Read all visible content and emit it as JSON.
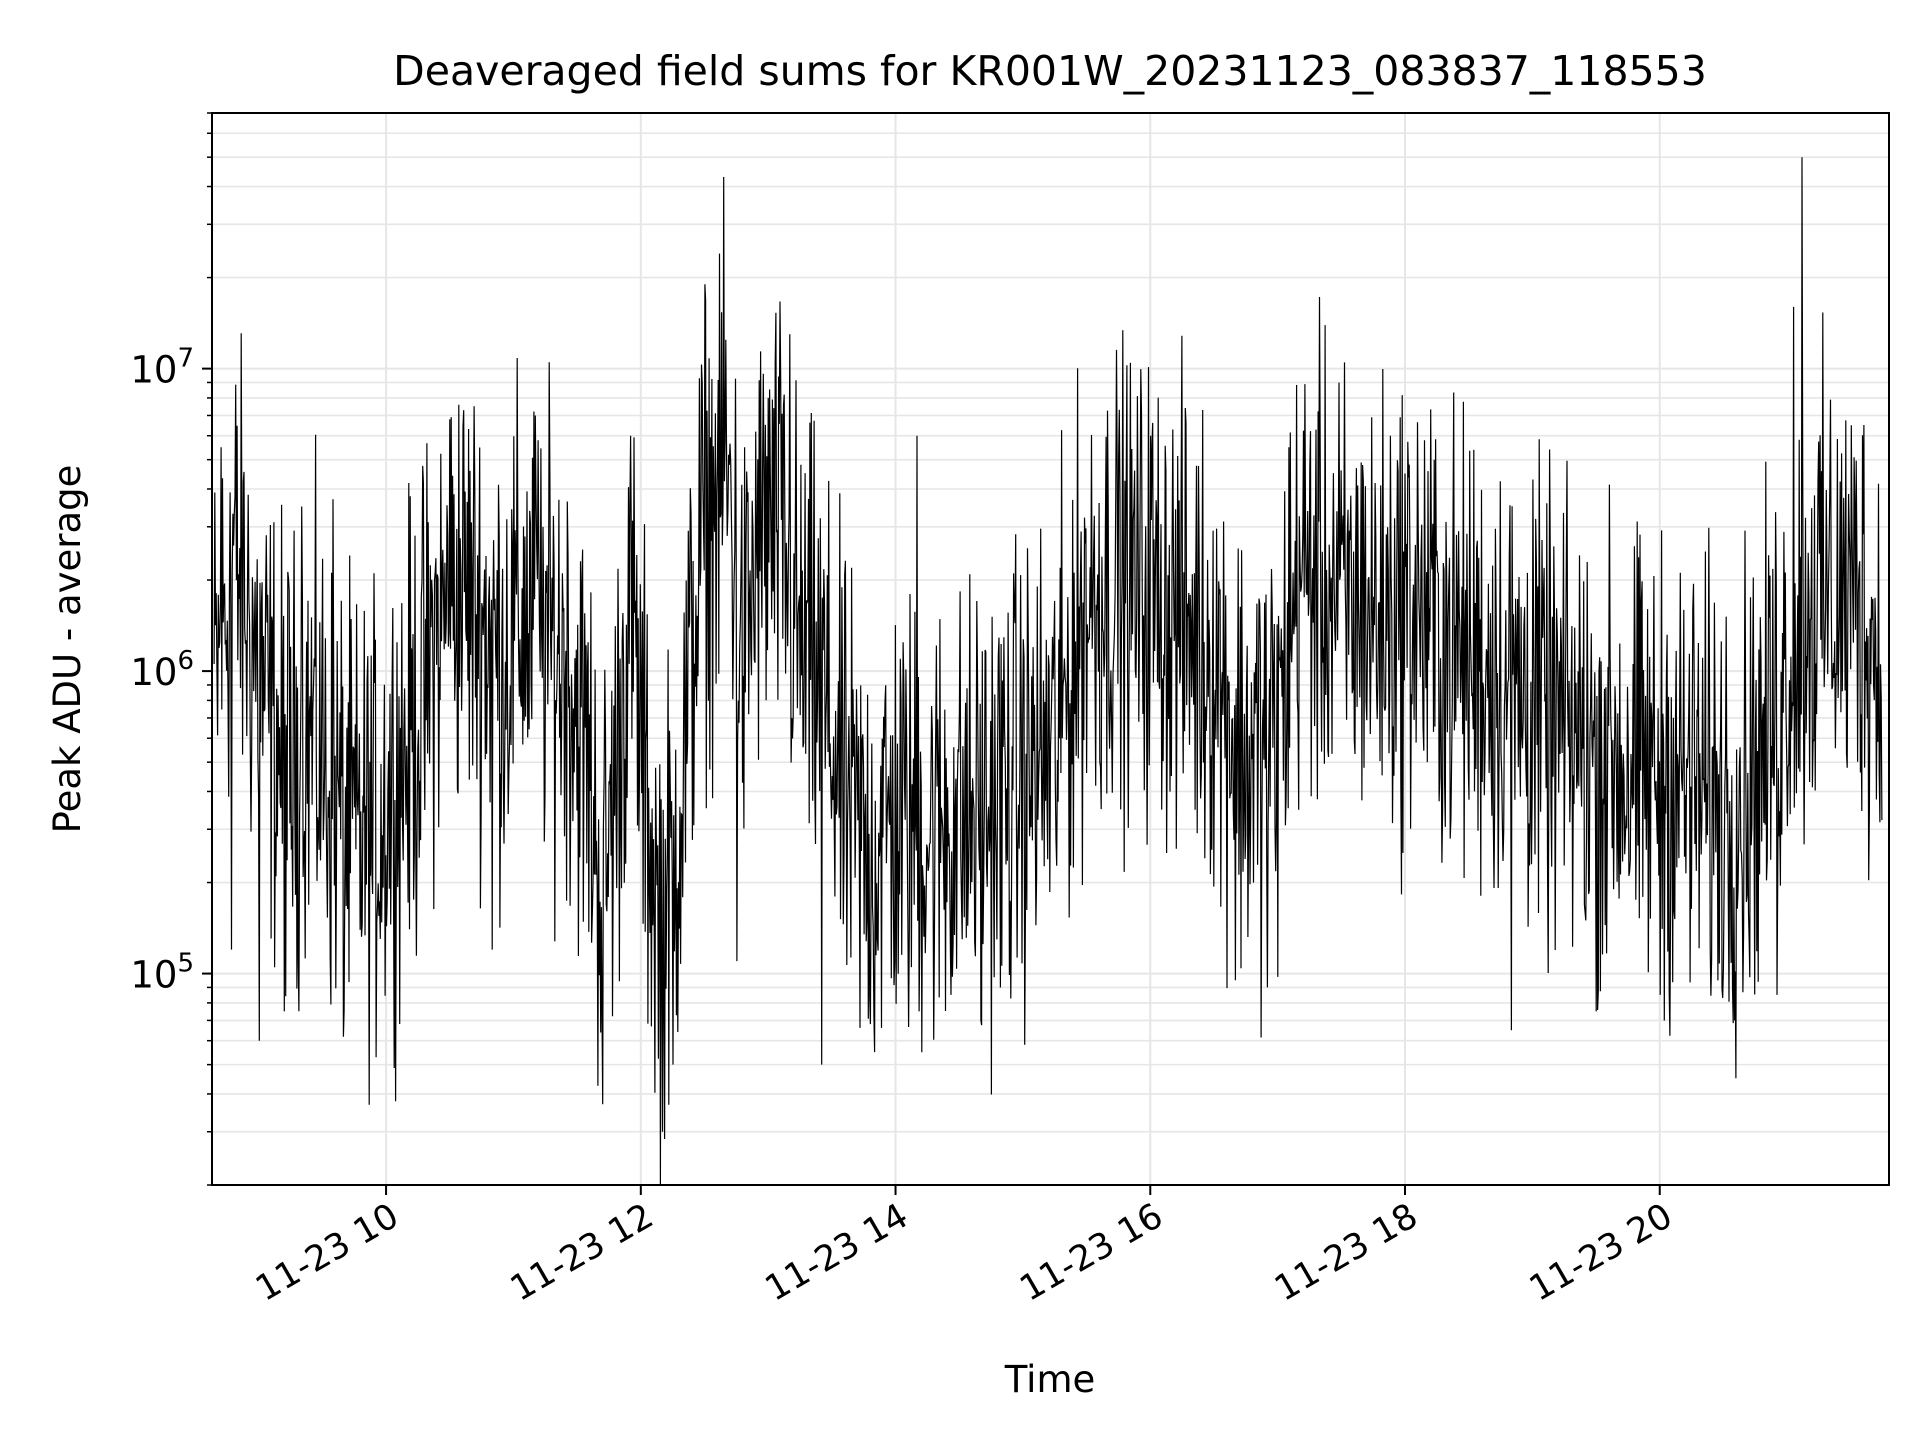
{
  "chart_data": {
    "type": "line",
    "title": "Deaveraged field sums for KR001W_20231123_083837_118553",
    "xlabel": "Time",
    "ylabel": "Peak ADU - average",
    "x_range": [
      "2023-11-23 08:38",
      "2023-11-23 21:48"
    ],
    "y_range": [
      20000,
      70000000
    ],
    "y_scale": "log",
    "grid": true,
    "line_color": "#000000",
    "grid_color": "#e6e6e6",
    "x_ticks": [
      {
        "value": "2023-11-23 10:00",
        "label": "11-23 10"
      },
      {
        "value": "2023-11-23 12:00",
        "label": "11-23 12"
      },
      {
        "value": "2023-11-23 14:00",
        "label": "11-23 14"
      },
      {
        "value": "2023-11-23 16:00",
        "label": "11-23 16"
      },
      {
        "value": "2023-11-23 18:00",
        "label": "11-23 18"
      },
      {
        "value": "2023-11-23 20:00",
        "label": "11-23 20"
      }
    ],
    "y_ticks": [
      {
        "value": 100000,
        "base": "10",
        "exp": "5"
      },
      {
        "value": 1000000,
        "base": "10",
        "exp": "6"
      },
      {
        "value": 10000000,
        "base": "10",
        "exp": "7"
      }
    ],
    "series": [
      {
        "points": [
          [
            "2023-11-23 08:40",
            900000
          ],
          [
            "2023-11-23 08:48",
            2500000
          ],
          [
            "2023-11-23 08:55",
            1500000
          ],
          [
            "2023-11-23 09:05",
            700000
          ],
          [
            "2023-11-23 09:15",
            450000
          ],
          [
            "2023-11-23 09:25",
            650000
          ],
          [
            "2023-11-23 09:35",
            400000
          ],
          [
            "2023-11-23 09:45",
            280000
          ],
          [
            "2023-11-23 09:55",
            300000
          ],
          [
            "2023-11-23 10:05",
            450000
          ],
          [
            "2023-11-23 10:15",
            700000
          ],
          [
            "2023-11-23 10:25",
            1400000
          ],
          [
            "2023-11-23 10:35",
            2000000
          ],
          [
            "2023-11-23 10:45",
            1500000
          ],
          [
            "2023-11-23 10:55",
            1100000
          ],
          [
            "2023-11-23 11:05",
            1600000
          ],
          [
            "2023-11-23 11:15",
            1300000
          ],
          [
            "2023-11-23 11:25",
            1100000
          ],
          [
            "2023-11-23 11:35",
            500000
          ],
          [
            "2023-11-23 11:42",
            180000
          ],
          [
            "2023-11-23 11:50",
            600000
          ],
          [
            "2023-11-23 11:55",
            1800000
          ],
          [
            "2023-11-23 12:00",
            600000
          ],
          [
            "2023-11-23 12:08",
            150000
          ],
          [
            "2023-11-23 12:15",
            200000
          ],
          [
            "2023-11-23 12:20",
            500000
          ],
          [
            "2023-11-23 12:28",
            2500000
          ],
          [
            "2023-11-23 12:35",
            3500000
          ],
          [
            "2023-11-23 12:42",
            4000000
          ],
          [
            "2023-11-23 12:48",
            1000000
          ],
          [
            "2023-11-23 12:55",
            2500000
          ],
          [
            "2023-11-23 13:05",
            3000000
          ],
          [
            "2023-11-23 13:15",
            1200000
          ],
          [
            "2023-11-23 13:25",
            900000
          ],
          [
            "2023-11-23 13:35",
            400000
          ],
          [
            "2023-11-23 13:45",
            250000
          ],
          [
            "2023-11-23 14:00",
            320000
          ],
          [
            "2023-11-23 14:15",
            300000
          ],
          [
            "2023-11-23 14:30",
            320000
          ],
          [
            "2023-11-23 14:45",
            350000
          ],
          [
            "2023-11-23 15:00",
            450000
          ],
          [
            "2023-11-23 15:15",
            550000
          ],
          [
            "2023-11-23 15:30",
            1700000
          ],
          [
            "2023-11-23 15:45",
            2000000
          ],
          [
            "2023-11-23 16:00",
            1800000
          ],
          [
            "2023-11-23 16:15",
            1500000
          ],
          [
            "2023-11-23 16:30",
            1100000
          ],
          [
            "2023-11-23 16:45",
            500000
          ],
          [
            "2023-11-23 17:00",
            600000
          ],
          [
            "2023-11-23 17:10",
            2200000
          ],
          [
            "2023-11-23 17:20",
            2000000
          ],
          [
            "2023-11-23 17:35",
            1600000
          ],
          [
            "2023-11-23 17:50",
            1500000
          ],
          [
            "2023-11-23 18:05",
            1700000
          ],
          [
            "2023-11-23 18:20",
            1200000
          ],
          [
            "2023-11-23 18:35",
            1100000
          ],
          [
            "2023-11-23 18:50",
            900000
          ],
          [
            "2023-11-23 19:05",
            700000
          ],
          [
            "2023-11-23 19:20",
            600000
          ],
          [
            "2023-11-23 19:35",
            550000
          ],
          [
            "2023-11-23 19:50",
            450000
          ],
          [
            "2023-11-23 20:05",
            450000
          ],
          [
            "2023-11-23 20:20",
            400000
          ],
          [
            "2023-11-23 20:35",
            350000
          ],
          [
            "2023-11-23 20:50",
            550000
          ],
          [
            "2023-11-23 21:05",
            1500000
          ],
          [
            "2023-11-23 21:20",
            1800000
          ],
          [
            "2023-11-23 21:35",
            1700000
          ],
          [
            "2023-11-23 21:46",
            900000
          ]
        ],
        "spikes": [
          [
            "2023-11-23 08:42",
            5500000
          ],
          [
            "2023-11-23 08:47",
            120000
          ],
          [
            "2023-11-23 09:00",
            60000
          ],
          [
            "2023-11-23 09:12",
            75000
          ],
          [
            "2023-11-23 09:20",
            3500000
          ],
          [
            "2023-11-23 09:35",
            3700000
          ],
          [
            "2023-11-23 09:40",
            75000
          ],
          [
            "2023-11-23 10:30",
            6800000
          ],
          [
            "2023-11-23 10:50",
            120000
          ],
          [
            "2023-11-23 11:10",
            7000000
          ],
          [
            "2023-11-23 11:42",
            37000
          ],
          [
            "2023-11-23 11:55",
            6000000
          ],
          [
            "2023-11-23 12:10",
            30000
          ],
          [
            "2023-11-23 12:15",
            50000
          ],
          [
            "2023-11-23 12:30",
            19000000
          ],
          [
            "2023-11-23 12:37",
            24000000
          ],
          [
            "2023-11-23 12:39",
            43000000
          ],
          [
            "2023-11-23 12:45",
            110000
          ],
          [
            "2023-11-23 13:00",
            8000000
          ],
          [
            "2023-11-23 13:10",
            13000000
          ],
          [
            "2023-11-23 13:25",
            50000
          ],
          [
            "2023-11-23 13:50",
            55000
          ],
          [
            "2023-11-23 14:10",
            6000000
          ],
          [
            "2023-11-23 14:40",
            70000
          ],
          [
            "2023-11-23 15:45",
            5000000
          ],
          [
            "2023-11-23 16:00",
            6000000
          ],
          [
            "2023-11-23 16:40",
            95000
          ],
          [
            "2023-11-23 16:55",
            90000
          ],
          [
            "2023-11-23 17:05",
            5500000
          ],
          [
            "2023-11-23 17:40",
            4800000
          ],
          [
            "2023-11-23 18:00",
            4500000
          ],
          [
            "2023-11-23 18:50",
            65000
          ],
          [
            "2023-11-23 19:00",
            4300000
          ],
          [
            "2023-11-23 19:30",
            75000
          ],
          [
            "2023-11-23 20:00",
            85000
          ],
          [
            "2023-11-23 20:35",
            70000
          ],
          [
            "2023-11-23 20:55",
            85000
          ],
          [
            "2023-11-23 21:03",
            16000000
          ],
          [
            "2023-11-23 21:07",
            50000000
          ],
          [
            "2023-11-23 21:30",
            6500000
          ],
          [
            "2023-11-23 21:46",
            160000
          ]
        ]
      }
    ]
  }
}
